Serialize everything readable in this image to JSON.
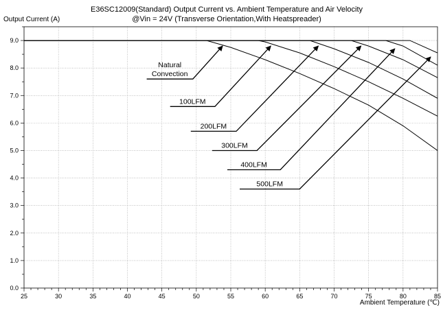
{
  "chart_data": {
    "type": "line",
    "title": "E36SC12009(Standard)  Output Current vs. Ambient Temperature and Air Velocity",
    "subtitle": "@Vin = 24V (Transverse Orientation,With Heatspreader)",
    "xlabel": "Ambient Temperature (℃)",
    "ylabel": "Output Current (A)",
    "xlim": [
      25,
      85
    ],
    "ylim": [
      0,
      9.5
    ],
    "xticks": [
      25,
      30,
      35,
      40,
      45,
      50,
      55,
      60,
      65,
      70,
      75,
      80,
      85
    ],
    "xtick_labels": [
      "25",
      "30",
      "35",
      "40",
      "45",
      "50",
      "55",
      "60",
      "65",
      "70",
      "75",
      "80",
      "85"
    ],
    "yticks": [
      0,
      1,
      2,
      3,
      4,
      5,
      6,
      7,
      8,
      9
    ],
    "ytick_labels": [
      "0.0",
      "1.0",
      "2.0",
      "3.0",
      "4.0",
      "5.0",
      "6.0",
      "7.0",
      "8.0",
      "9.0"
    ],
    "grid": true,
    "series": [
      {
        "name": "Natural Convection",
        "x": [
          25,
          51.5,
          55,
          60,
          65,
          70,
          75,
          80,
          85
        ],
        "y": [
          9.0,
          9.0,
          8.75,
          8.3,
          7.8,
          7.25,
          6.65,
          5.9,
          5.0
        ]
      },
      {
        "name": "100LFM",
        "x": [
          25,
          59,
          60,
          65,
          70,
          75,
          80,
          85
        ],
        "y": [
          9.0,
          9.0,
          8.95,
          8.55,
          8.05,
          7.5,
          6.9,
          6.25
        ]
      },
      {
        "name": "200LFM",
        "x": [
          25,
          66.5,
          70,
          75,
          80,
          85
        ],
        "y": [
          9.0,
          9.0,
          8.7,
          8.2,
          7.6,
          6.9
        ]
      },
      {
        "name": "300LFM",
        "x": [
          25,
          72.5,
          75,
          80,
          85
        ],
        "y": [
          9.0,
          9.0,
          8.8,
          8.3,
          7.65
        ]
      },
      {
        "name": "400LFM",
        "x": [
          25,
          77.5,
          80,
          85
        ],
        "y": [
          9.0,
          9.0,
          8.8,
          8.1
        ]
      },
      {
        "name": "500LFM",
        "x": [
          25,
          81,
          85
        ],
        "y": [
          9.0,
          9.0,
          8.55
        ]
      }
    ],
    "annotations": [
      {
        "lines": [
          "Natural",
          "Convection"
        ],
        "leader": [
          [
            42.8,
            7.6
          ],
          [
            49.5,
            7.6
          ],
          [
            53.8,
            8.8
          ]
        ]
      },
      {
        "lines": [
          "100LFM"
        ],
        "leader": [
          [
            46.2,
            6.6
          ],
          [
            52.7,
            6.6
          ],
          [
            60.8,
            8.8
          ]
        ]
      },
      {
        "lines": [
          "200LFM"
        ],
        "leader": [
          [
            49.2,
            5.7
          ],
          [
            55.8,
            5.7
          ],
          [
            67.7,
            8.8
          ]
        ]
      },
      {
        "lines": [
          "300LFM"
        ],
        "leader": [
          [
            52.3,
            5.0
          ],
          [
            58.8,
            5.0
          ],
          [
            73.9,
            8.8
          ]
        ]
      },
      {
        "lines": [
          "400LFM"
        ],
        "leader": [
          [
            54.5,
            4.3
          ],
          [
            62.2,
            4.3
          ],
          [
            78.8,
            8.7
          ]
        ]
      },
      {
        "lines": [
          "500LFM"
        ],
        "leader": [
          [
            56.3,
            3.6
          ],
          [
            65.0,
            3.6
          ],
          [
            84.0,
            8.4
          ]
        ]
      }
    ],
    "colors": {
      "curve": "#000000",
      "grid": "#9a9a9a",
      "axis": "#000000"
    }
  }
}
